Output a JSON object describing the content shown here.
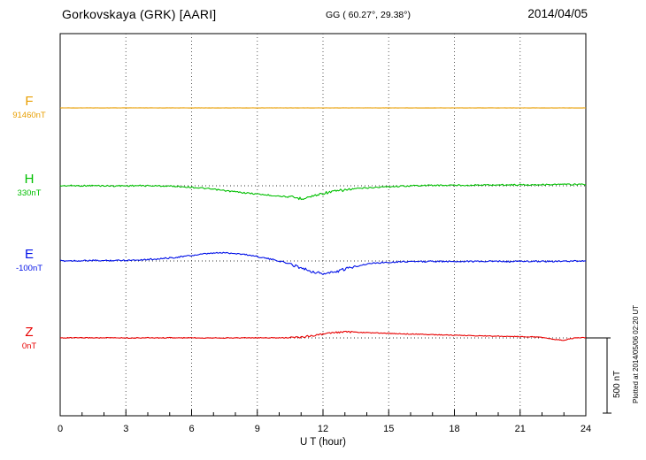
{
  "header": {
    "station": "Gorkovskaya (GRK)  [AARI]",
    "coordinates": "GG ( 60.27°,  29.38°)",
    "date": "2014/04/05"
  },
  "axis": {
    "xlabel": "U T (hour)",
    "ticks": [
      "0",
      "3",
      "6",
      "9",
      "12",
      "15",
      "18",
      "21",
      "24"
    ]
  },
  "scale_bar": {
    "label": "500 nT"
  },
  "side_note": "Plotted at 2014/05/06 02:20 UT",
  "channels": [
    {
      "name": "F",
      "baseline_label": "91460nT",
      "color": "#e89e00"
    },
    {
      "name": "H",
      "baseline_label": "330nT",
      "color": "#00bf00"
    },
    {
      "name": "E",
      "baseline_label": "-100nT",
      "color": "#0010e8"
    },
    {
      "name": "Z",
      "baseline_label": "0nT",
      "color": "#e80000"
    }
  ],
  "chart_data": {
    "type": "line",
    "title": "Gorkovskaya (GRK) [AARI] magnetogram 2014/04/05",
    "xlabel": "U T (hour)",
    "x_range": [
      0,
      24
    ],
    "x_tick_interval_hours": 3,
    "x_step_hours": 0.5,
    "y_units": "nT, offset from each channel baseline",
    "scale_bar_nT": 500,
    "grid": "dotted vertical lines every 3 h; dotted horizontal baseline per channel",
    "legend_position": "left margin channel labels",
    "series": [
      {
        "name": "F",
        "baseline_nT": 91460,
        "color": "#e89e00",
        "values": [
          0,
          0,
          0,
          0,
          0,
          0,
          0,
          0,
          0,
          0,
          0,
          0,
          0,
          0,
          0,
          0,
          0,
          0,
          0,
          0,
          0,
          0,
          0,
          0,
          0,
          0,
          0,
          0,
          0,
          0,
          0,
          0,
          0,
          0,
          0,
          0,
          0,
          0,
          0,
          0,
          0,
          0,
          0,
          0,
          0,
          0,
          0,
          0,
          0
        ]
      },
      {
        "name": "H",
        "baseline_nT": 330,
        "color": "#00bf00",
        "values": [
          0,
          1,
          0,
          1,
          0,
          -1,
          0,
          1,
          0,
          -1,
          -2,
          -5,
          -10,
          -16,
          -24,
          -32,
          -40,
          -48,
          -55,
          -62,
          -68,
          -75,
          -85,
          -70,
          -50,
          -38,
          -28,
          -20,
          -14,
          -10,
          -6,
          -3,
          0,
          2,
          3,
          3,
          4,
          4,
          5,
          5,
          6,
          6,
          7,
          7,
          8,
          8,
          9,
          9,
          10
        ]
      },
      {
        "name": "E",
        "baseline_nT": -100,
        "color": "#0010e8",
        "values": [
          0,
          2,
          1,
          3,
          2,
          4,
          5,
          7,
          10,
          14,
          20,
          28,
          36,
          45,
          52,
          55,
          50,
          42,
          30,
          15,
          0,
          -20,
          -45,
          -70,
          -85,
          -75,
          -55,
          -35,
          -20,
          -12,
          -8,
          -5,
          -3,
          -5,
          -2,
          -4,
          -3,
          -2,
          -4,
          -3,
          -2,
          -4,
          -2,
          -3,
          -2,
          -3,
          -2,
          -1,
          0
        ]
      },
      {
        "name": "Z",
        "baseline_nT": 0,
        "color": "#e80000",
        "values": [
          0,
          1,
          0,
          1,
          0,
          1,
          0,
          0,
          1,
          0,
          1,
          0,
          1,
          0,
          1,
          0,
          0,
          1,
          0,
          1,
          0,
          2,
          5,
          15,
          25,
          35,
          40,
          38,
          35,
          33,
          30,
          28,
          26,
          24,
          22,
          20,
          18,
          16,
          15,
          13,
          12,
          10,
          9,
          7,
          5,
          -10,
          -15,
          0,
          2
        ]
      }
    ]
  }
}
